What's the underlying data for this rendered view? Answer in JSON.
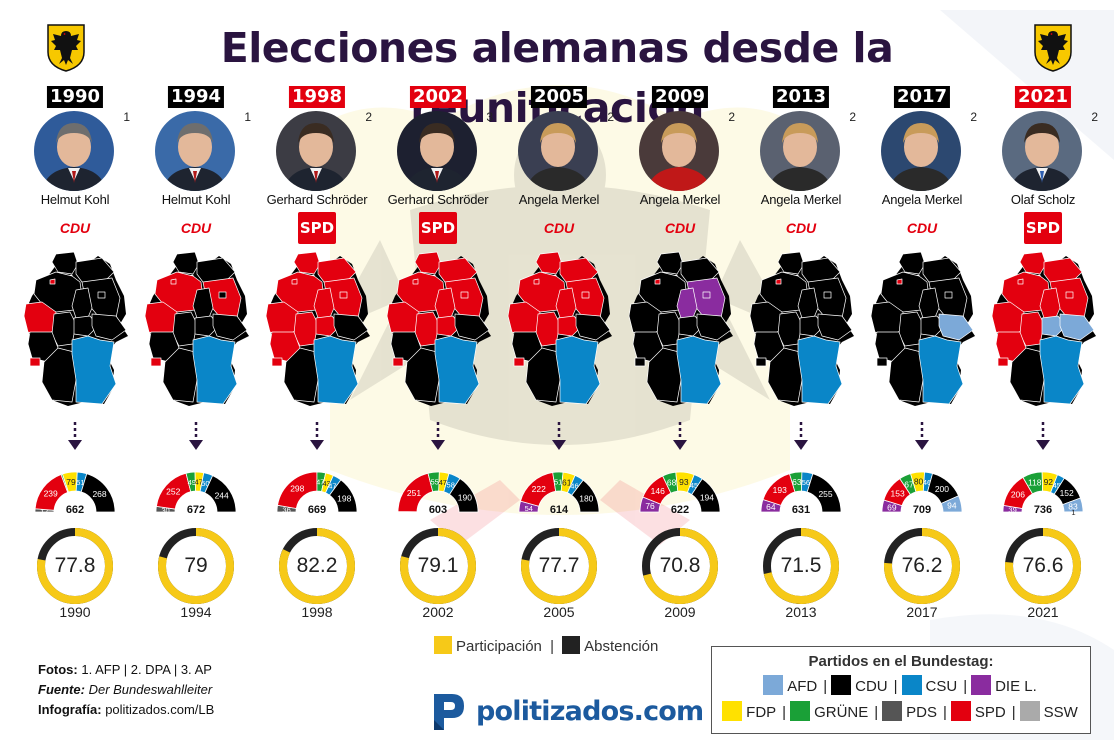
{
  "title": "Elecciones alemanas desde la reunificación",
  "colors": {
    "AFD": "#7ca9d8",
    "CDU": "#000000",
    "CSU": "#0a86c8",
    "DIE L.": "#8a2c9f",
    "FDP": "#ffe100",
    "GRÜNE": "#1aa037",
    "PDS": "#555555",
    "SPD": "#e3000f",
    "SSW": "#aaaaaa",
    "participation": "#f6c918",
    "abstention": "#222222",
    "title": "#2a1440"
  },
  "chart_data": [
    {
      "type": "pie",
      "subtype": "parliament-seats-half-donut",
      "elections": [
        {
          "year": "1990",
          "chancellor": "Helmut Kohl",
          "term": "1",
          "party": "CDU",
          "total": "662",
          "seats": [
            {
              "party": "PDS",
              "label": "17",
              "value": 17
            },
            {
              "party": "SPD",
              "label": "239",
              "value": 239
            },
            {
              "party": "GRÜNE",
              "label": "",
              "value": 8
            },
            {
              "party": "FDP",
              "label": "79",
              "value": 79
            },
            {
              "party": "CSU",
              "label": "51",
              "value": 51
            },
            {
              "party": "CDU",
              "label": "268",
              "value": 268
            }
          ]
        },
        {
          "year": "1994",
          "chancellor": "Helmut Kohl",
          "term": "1",
          "party": "CDU",
          "total": "672",
          "seats": [
            {
              "party": "PDS",
              "label": "30",
              "value": 30
            },
            {
              "party": "SPD",
              "label": "252",
              "value": 252
            },
            {
              "party": "GRÜNE",
              "label": "49",
              "value": 49
            },
            {
              "party": "FDP",
              "label": "47",
              "value": 47
            },
            {
              "party": "CSU",
              "label": "50",
              "value": 50
            },
            {
              "party": "CDU",
              "label": "244",
              "value": 244
            }
          ]
        },
        {
          "year": "1998",
          "chancellor": "Gerhard Schröder",
          "term": "2",
          "party": "SPD",
          "total": "669",
          "seats": [
            {
              "party": "PDS",
              "label": "36",
              "value": 36
            },
            {
              "party": "SPD",
              "label": "298",
              "value": 298
            },
            {
              "party": "GRÜNE",
              "label": "47",
              "value": 47
            },
            {
              "party": "FDP",
              "label": "43",
              "value": 43
            },
            {
              "party": "CSU",
              "label": "47",
              "value": 47
            },
            {
              "party": "CDU",
              "label": "198",
              "value": 198
            }
          ]
        },
        {
          "year": "2002",
          "chancellor": "Gerhard Schröder",
          "term": "3",
          "party": "SPD",
          "total": "603",
          "seats": [
            {
              "party": "PDS",
              "label": "2",
              "value": 2
            },
            {
              "party": "SPD",
              "label": "251",
              "value": 251
            },
            {
              "party": "GRÜNE",
              "label": "55",
              "value": 55
            },
            {
              "party": "FDP",
              "label": "47",
              "value": 47
            },
            {
              "party": "CSU",
              "label": "58",
              "value": 58
            },
            {
              "party": "CDU",
              "label": "190",
              "value": 190
            }
          ]
        },
        {
          "year": "2005",
          "chancellor": "Angela Merkel",
          "term": "2",
          "party": "CDU",
          "total": "614",
          "seats": [
            {
              "party": "DIE L.",
              "label": "54",
              "value": 54
            },
            {
              "party": "SPD",
              "label": "222",
              "value": 222
            },
            {
              "party": "GRÜNE",
              "label": "51",
              "value": 51
            },
            {
              "party": "FDP",
              "label": "61",
              "value": 61
            },
            {
              "party": "CSU",
              "label": "46",
              "value": 46
            },
            {
              "party": "CDU",
              "label": "180",
              "value": 180
            }
          ]
        },
        {
          "year": "2009",
          "chancellor": "Angela Merkel",
          "term": "2",
          "party": "CDU",
          "total": "622",
          "seats": [
            {
              "party": "DIE L.",
              "label": "76",
              "value": 76
            },
            {
              "party": "SPD",
              "label": "146",
              "value": 146
            },
            {
              "party": "GRÜNE",
              "label": "68",
              "value": 68
            },
            {
              "party": "FDP",
              "label": "93",
              "value": 93
            },
            {
              "party": "CSU",
              "label": "45",
              "value": 45
            },
            {
              "party": "CDU",
              "label": "194",
              "value": 194
            }
          ]
        },
        {
          "year": "2013",
          "chancellor": "Angela Merkel",
          "term": "2",
          "party": "CDU",
          "total": "631",
          "seats": [
            {
              "party": "DIE L.",
              "label": "64",
              "value": 64
            },
            {
              "party": "SPD",
              "label": "193",
              "value": 193
            },
            {
              "party": "GRÜNE",
              "label": "63",
              "value": 63
            },
            {
              "party": "CSU",
              "label": "56",
              "value": 56
            },
            {
              "party": "CDU",
              "label": "255",
              "value": 255
            }
          ]
        },
        {
          "year": "2017",
          "chancellor": "Angela Merkel",
          "term": "2",
          "party": "CDU",
          "total": "709",
          "seats": [
            {
              "party": "DIE L.",
              "label": "69",
              "value": 69
            },
            {
              "party": "SPD",
              "label": "153",
              "value": 153
            },
            {
              "party": "GRÜNE",
              "label": "67",
              "value": 67
            },
            {
              "party": "FDP",
              "label": "80",
              "value": 80
            },
            {
              "party": "CSU",
              "label": "46",
              "value": 46
            },
            {
              "party": "CDU",
              "label": "200",
              "value": 200
            },
            {
              "party": "AFD",
              "label": "94",
              "value": 94
            }
          ]
        },
        {
          "year": "2021",
          "chancellor": "Olaf Scholz",
          "term": "2",
          "party": "SPD",
          "total": "736",
          "seats": [
            {
              "party": "DIE L.",
              "label": "39",
              "value": 39
            },
            {
              "party": "SPD",
              "label": "206",
              "value": 206
            },
            {
              "party": "GRÜNE",
              "label": "118",
              "value": 118
            },
            {
              "party": "FDP",
              "label": "92",
              "value": 92
            },
            {
              "party": "CSU",
              "label": "45",
              "value": 45
            },
            {
              "party": "CDU",
              "label": "152",
              "value": 152
            },
            {
              "party": "AFD",
              "label": "83",
              "value": 83
            },
            {
              "party": "SSW",
              "label": "1",
              "value": 1
            }
          ]
        }
      ]
    },
    {
      "type": "pie",
      "subtype": "turnout-donut",
      "categories": [
        "1990",
        "1994",
        "1998",
        "2002",
        "2005",
        "2009",
        "2013",
        "2017",
        "2021"
      ],
      "values": [
        77.8,
        79,
        82.2,
        79.1,
        77.7,
        70.8,
        71.5,
        76.2,
        76.6
      ],
      "labels": [
        "77.8",
        "79",
        "82.2",
        "79.1",
        "77.7",
        "70.8",
        "71.5",
        "76.2",
        "76.6"
      ]
    }
  ],
  "maps": [
    {
      "year": "1990",
      "regions": {
        "SH": "CDU",
        "HH": "SPD",
        "MV": "CDU",
        "NI": "CDU",
        "HB": "SPD",
        "BB": "CDU",
        "BE": "CDU",
        "ST": "CDU",
        "NW": "SPD",
        "HE": "CDU",
        "TH": "CDU",
        "SN": "CDU",
        "RP": "CDU",
        "SL": "SPD",
        "BW": "CDU",
        "BY": "CSU"
      }
    },
    {
      "year": "1994",
      "regions": {
        "SH": "CDU",
        "HH": "SPD",
        "MV": "CDU",
        "NI": "SPD",
        "HB": "SPD",
        "BB": "SPD",
        "BE": "CDU",
        "ST": "CDU",
        "NW": "SPD",
        "HE": "CDU",
        "TH": "CDU",
        "SN": "CDU",
        "RP": "CDU",
        "SL": "SPD",
        "BW": "CDU",
        "BY": "CSU"
      }
    },
    {
      "year": "1998",
      "regions": {
        "SH": "SPD",
        "HH": "SPD",
        "MV": "SPD",
        "NI": "SPD",
        "HB": "SPD",
        "BB": "SPD",
        "BE": "SPD",
        "ST": "SPD",
        "NW": "SPD",
        "HE": "SPD",
        "TH": "SPD",
        "SN": "CDU",
        "RP": "SPD",
        "SL": "SPD",
        "BW": "CDU",
        "BY": "CSU"
      }
    },
    {
      "year": "2002",
      "regions": {
        "SH": "SPD",
        "HH": "SPD",
        "MV": "SPD",
        "NI": "SPD",
        "HB": "SPD",
        "BB": "SPD",
        "BE": "SPD",
        "ST": "SPD",
        "NW": "SPD",
        "HE": "SPD",
        "TH": "SPD",
        "SN": "CDU",
        "RP": "CDU",
        "SL": "SPD",
        "BW": "CDU",
        "BY": "CSU"
      }
    },
    {
      "year": "2005",
      "regions": {
        "SH": "SPD",
        "HH": "SPD",
        "MV": "SPD",
        "NI": "SPD",
        "HB": "SPD",
        "BB": "SPD",
        "BE": "SPD",
        "ST": "SPD",
        "NW": "SPD",
        "HE": "SPD",
        "TH": "SPD",
        "SN": "CDU",
        "RP": "CDU",
        "SL": "SPD",
        "BW": "CDU",
        "BY": "CSU"
      }
    },
    {
      "year": "2009",
      "regions": {
        "SH": "CDU",
        "HH": "SPD",
        "MV": "CDU",
        "NI": "CDU",
        "HB": "SPD",
        "BB": "DIE L.",
        "BE": "DIE L.",
        "ST": "DIE L.",
        "NW": "CDU",
        "HE": "CDU",
        "TH": "CDU",
        "SN": "CDU",
        "RP": "CDU",
        "SL": "CDU",
        "BW": "CDU",
        "BY": "CSU"
      }
    },
    {
      "year": "2013",
      "regions": {
        "SH": "CDU",
        "HH": "SPD",
        "MV": "CDU",
        "NI": "CDU",
        "HB": "SPD",
        "BB": "CDU",
        "BE": "CDU",
        "ST": "CDU",
        "NW": "CDU",
        "HE": "CDU",
        "TH": "CDU",
        "SN": "CDU",
        "RP": "CDU",
        "SL": "CDU",
        "BW": "CDU",
        "BY": "CSU"
      }
    },
    {
      "year": "2017",
      "regions": {
        "SH": "CDU",
        "HH": "SPD",
        "MV": "CDU",
        "NI": "CDU",
        "HB": "SPD",
        "BB": "CDU",
        "BE": "CDU",
        "ST": "CDU",
        "NW": "CDU",
        "HE": "CDU",
        "TH": "CDU",
        "SN": "AFD",
        "RP": "CDU",
        "SL": "CDU",
        "BW": "CDU",
        "BY": "CSU"
      }
    },
    {
      "year": "2021",
      "regions": {
        "SH": "SPD",
        "HH": "SPD",
        "MV": "SPD",
        "NI": "SPD",
        "HB": "SPD",
        "BB": "SPD",
        "BE": "SPD",
        "ST": "SPD",
        "NW": "SPD",
        "HE": "SPD",
        "TH": "AFD",
        "SN": "AFD",
        "RP": "SPD",
        "SL": "SPD",
        "BW": "CDU",
        "BY": "CSU"
      }
    }
  ],
  "turnout_legend": {
    "participation": "Participación",
    "separator": "|",
    "abstention": "Abstención"
  },
  "credits": {
    "photos_label": "Fotos:",
    "photos": "1. AFP | 2. DPA | 3. AP",
    "source_label": "Fuente:",
    "source": "Der Bundeswahlleiter",
    "graphic_label": "Infografía:",
    "graphic": "politizados.com/LB"
  },
  "brand": "politizados.com",
  "party_legend": {
    "title": "Partidos en el Bundestag:",
    "rows": [
      [
        {
          "name": "AFD",
          "color_key": "AFD"
        },
        {
          "name": "CDU",
          "color_key": "CDU"
        },
        {
          "name": "CSU",
          "color_key": "CSU"
        },
        {
          "name": "DIE L.",
          "color_key": "DIE L."
        }
      ],
      [
        {
          "name": "FDP",
          "color_key": "FDP"
        },
        {
          "name": "GRÜNE",
          "color_key": "GRÜNE"
        },
        {
          "name": "PDS",
          "color_key": "PDS"
        },
        {
          "name": "SPD",
          "color_key": "SPD"
        },
        {
          "name": "SSW",
          "color_key": "SSW"
        }
      ]
    ],
    "separator": "|"
  }
}
